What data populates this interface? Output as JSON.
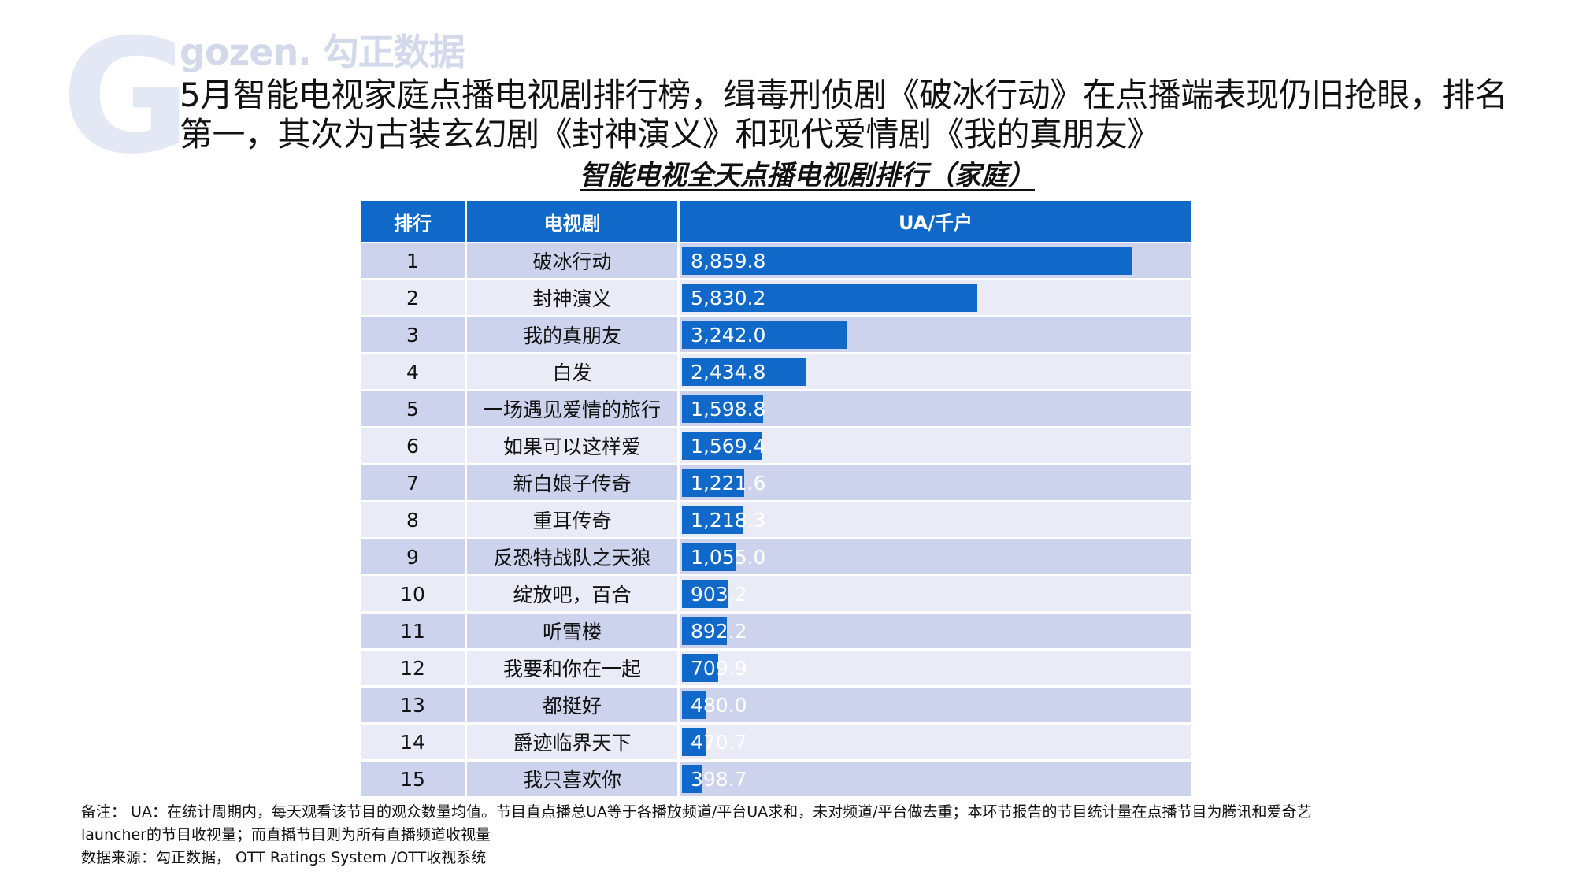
{
  "logo": {
    "mark": "G",
    "text": "gozen. 勾正数据"
  },
  "headline": "5月智能电视家庭点播电视剧排行榜，缉毒刑侦剧《破冰行动》在点播端表现仍旧抢眼，排名第一，其次为古装玄幻剧《封神演义》和现代爱情剧《我的真朋友》",
  "table": {
    "headers": {
      "rank": "排行",
      "name": "电视剧",
      "value": "UA/千户"
    }
  },
  "chart_data": {
    "type": "bar",
    "title": "智能电视全天点播电视剧排行（家庭）",
    "orientation": "horizontal",
    "value_label": "UA/千户",
    "xlim": [
      0,
      10000
    ],
    "colors": {
      "bar": "#1068c8",
      "row_a": "#cdd3ec",
      "row_b": "#e9ecf6",
      "header": "#1068c8"
    },
    "rows": [
      {
        "rank": "1",
        "name": "破冰行动",
        "value": 8859.8,
        "label": "8,859.8"
      },
      {
        "rank": "2",
        "name": "封神演义",
        "value": 5830.2,
        "label": "5,830.2"
      },
      {
        "rank": "3",
        "name": "我的真朋友",
        "value": 3242.0,
        "label": "3,242.0"
      },
      {
        "rank": "4",
        "name": "白发",
        "value": 2434.8,
        "label": "2,434.8"
      },
      {
        "rank": "5",
        "name": "一场遇见爱情的旅行",
        "value": 1598.8,
        "label": "1,598.8"
      },
      {
        "rank": "6",
        "name": "如果可以这样爱",
        "value": 1569.4,
        "label": "1,569.4"
      },
      {
        "rank": "7",
        "name": "新白娘子传奇",
        "value": 1221.6,
        "label": "1,221.6"
      },
      {
        "rank": "8",
        "name": "重耳传奇",
        "value": 1218.3,
        "label": "1,218.3"
      },
      {
        "rank": "9",
        "name": "反恐特战队之天狼",
        "value": 1055.0,
        "label": "1,055.0"
      },
      {
        "rank": "10",
        "name": "绽放吧，百合",
        "value": 903.2,
        "label": "903.2"
      },
      {
        "rank": "11",
        "name": "听雪楼",
        "value": 892.2,
        "label": "892.2"
      },
      {
        "rank": "12",
        "name": "我要和你在一起",
        "value": 709.9,
        "label": "709.9"
      },
      {
        "rank": "13",
        "name": "都挺好",
        "value": 480.0,
        "label": "480.0"
      },
      {
        "rank": "14",
        "name": "爵迹临界天下",
        "value": 470.7,
        "label": "470.7"
      },
      {
        "rank": "15",
        "name": "我只喜欢你",
        "value": 398.7,
        "label": "398.7"
      }
    ]
  },
  "notes": {
    "line1": "备注： UA：在统计周期内，每天观看该节目的观众数量均值。节目直点播总UA等于各播放频道/平台UA求和，未对频道/平台做去重；本环节报告的节目统计量在点播节目为腾讯和爱奇艺",
    "line2": "launcher的节目收视量；而直播节目则为所有直播频道收视量",
    "line3": "数据来源：勾正数据， OTT Ratings System /OTT收视系统"
  }
}
